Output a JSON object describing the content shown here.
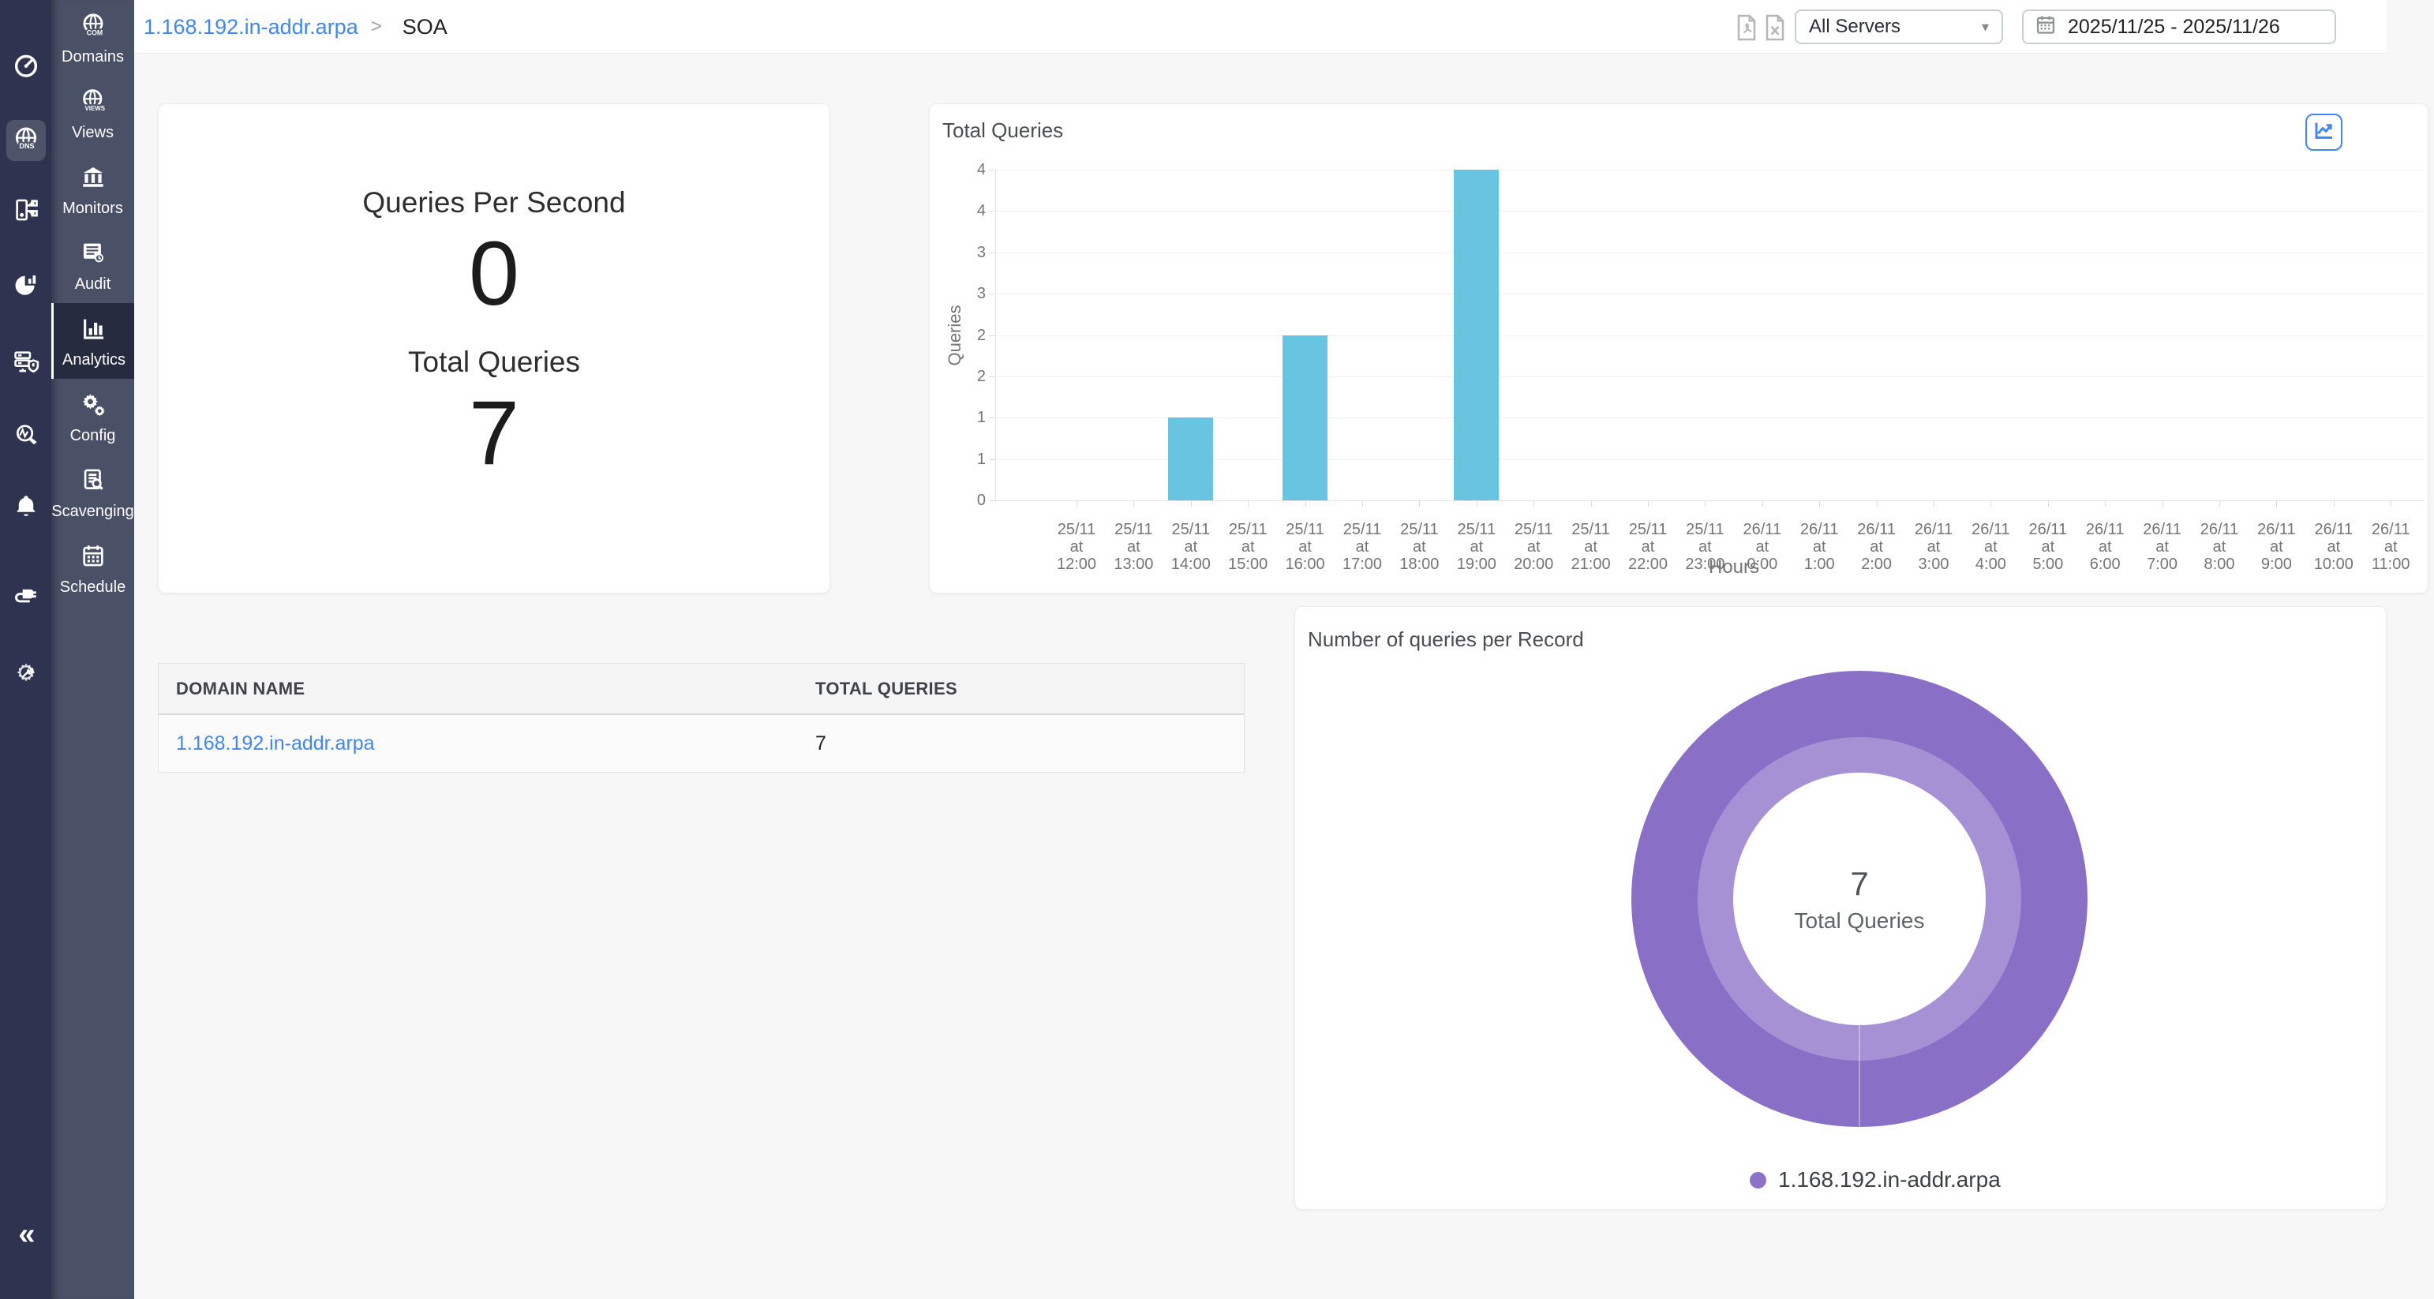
{
  "topbar": {
    "breadcrumb": {
      "link": "1.168.192.in-addr.arpa",
      "separator": ">",
      "current": "SOA"
    },
    "server_select": {
      "value": "All Servers",
      "caret": "▾"
    },
    "date_range": "2025/11/25 - 2025/11/26"
  },
  "rail": {
    "collapse_glyph": "«",
    "dns_icon_text": "DNS"
  },
  "sidebar": {
    "items": [
      {
        "label": "Domains",
        "icon_text": "COM"
      },
      {
        "label": "Views",
        "icon_text": "VIEWS"
      },
      {
        "label": "Monitors"
      },
      {
        "label": "Audit"
      },
      {
        "label": "Analytics",
        "active": true
      },
      {
        "label": "Config"
      },
      {
        "label": "Scavenging"
      },
      {
        "label": "Schedule"
      }
    ]
  },
  "summary": {
    "qps_label": "Queries Per Second",
    "qps_value": "0",
    "total_label": "Total Queries",
    "total_value": "7"
  },
  "table": {
    "headers": {
      "domain": "DOMAIN NAME",
      "total": "TOTAL QUERIES"
    },
    "rows": [
      {
        "domain": "1.168.192.in-addr.arpa",
        "total": "7"
      }
    ]
  },
  "donut": {
    "title": "Number of queries per Record",
    "center_value": "7",
    "center_label": "Total Queries",
    "legend": [
      {
        "label": "1.168.192.in-addr.arpa",
        "color": "#8b72c9"
      }
    ]
  },
  "chart_data": [
    {
      "type": "bar",
      "title": "Total Queries",
      "xlabel": "Hours",
      "ylabel": "Queries",
      "ylim": [
        0,
        4
      ],
      "grid": true,
      "y_tick_labels": [
        "0",
        "1",
        "1",
        "2",
        "2",
        "3",
        "3",
        "4",
        "4"
      ],
      "bar_color": "#68c4e0",
      "categories": [
        "25/11 at 12:00",
        "25/11 at 13:00",
        "25/11 at 14:00",
        "25/11 at 15:00",
        "25/11 at 16:00",
        "25/11 at 17:00",
        "25/11 at 18:00",
        "25/11 at 19:00",
        "25/11 at 20:00",
        "25/11 at 21:00",
        "25/11 at 22:00",
        "25/11 at 23:00",
        "26/11 at 0:00",
        "26/11 at 1:00",
        "26/11 at 2:00",
        "26/11 at 3:00",
        "26/11 at 4:00",
        "26/11 at 5:00",
        "26/11 at 6:00",
        "26/11 at 7:00",
        "26/11 at 8:00",
        "26/11 at 9:00",
        "26/11 at 10:00",
        "26/11 at 11:00"
      ],
      "values": [
        0,
        0,
        1,
        0,
        2,
        0,
        0,
        4,
        0,
        0,
        0,
        0,
        0,
        0,
        0,
        0,
        0,
        0,
        0,
        0,
        0,
        0,
        0,
        0
      ]
    },
    {
      "type": "doughnut",
      "title": "Number of queries per Record",
      "labels": [
        "1.168.192.in-addr.arpa"
      ],
      "values": [
        7
      ],
      "colors": {
        "outer": "#8a6fc7",
        "inner": "#a691d5"
      },
      "center_text": [
        "7",
        "Total Queries"
      ],
      "legend_position": "bottom"
    }
  ],
  "colors": {
    "link_blue": "#4285f4",
    "bar_blue": "#68c4e0",
    "donut_outer": "#8a6fc7",
    "donut_inner": "#a691d5",
    "sidebar_dark": "#2e3350",
    "sidebar_light": "#4a5066",
    "active_item_bg": "#272b40",
    "page_bg": "#f7f7f8"
  }
}
